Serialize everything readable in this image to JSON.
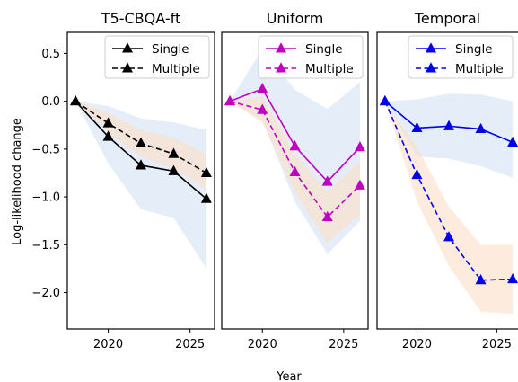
{
  "figure": {
    "xlabel": "Year",
    "ylabel": "Log-likelihood change"
  },
  "chart_data": [
    {
      "type": "line",
      "title": "T5-CBQA-ft",
      "color": "#000000",
      "band_colors": [
        "#cfe0f3",
        "#fbe0c6"
      ],
      "x": [
        2018,
        2020,
        2022,
        2024,
        2026
      ],
      "series": [
        {
          "name": "Single",
          "style": "solid",
          "values": [
            0.0,
            -0.37,
            -0.67,
            -0.73,
            -1.02
          ],
          "band_lower": [
            0.0,
            -0.65,
            -1.13,
            -1.22,
            -1.75
          ],
          "band_upper": [
            0.0,
            -0.05,
            -0.18,
            -0.22,
            -0.3
          ]
        },
        {
          "name": "Multiple",
          "style": "dashed",
          "values": [
            0.0,
            -0.23,
            -0.44,
            -0.55,
            -0.75
          ],
          "band_lower": [
            0.0,
            -0.33,
            -0.58,
            -0.7,
            -0.92
          ],
          "band_upper": [
            0.0,
            -0.12,
            -0.3,
            -0.38,
            -0.55
          ]
        }
      ],
      "xticks": [
        2020,
        2025
      ],
      "yticks": [
        0.5,
        0.0,
        -0.5,
        -1.0,
        -1.5,
        -2.0
      ],
      "ytick_labels": [
        "0.5",
        "0.0",
        "−0.5",
        "−1.0",
        "−1.5",
        "−2.0"
      ],
      "xlim": [
        2017.5,
        2026.5
      ],
      "ylim": [
        -2.38,
        0.72
      ],
      "legend": "top-right"
    },
    {
      "type": "line",
      "title": "Uniform",
      "color": "#c000c0",
      "band_colors": [
        "#cfe0f3",
        "#fbe0c6"
      ],
      "x": [
        2018,
        2020,
        2022,
        2024,
        2026
      ],
      "series": [
        {
          "name": "Single",
          "style": "solid",
          "values": [
            0.0,
            0.13,
            -0.47,
            -0.84,
            -0.48
          ],
          "band_lower": [
            0.0,
            -0.2,
            -1.05,
            -1.6,
            -1.25
          ],
          "band_upper": [
            0.0,
            0.55,
            0.12,
            -0.08,
            0.2
          ]
        },
        {
          "name": "Multiple",
          "style": "dashed",
          "values": [
            0.0,
            -0.09,
            -0.74,
            -1.21,
            -0.88
          ],
          "band_lower": [
            0.0,
            -0.22,
            -0.95,
            -1.48,
            -1.18
          ],
          "band_upper": [
            0.0,
            0.05,
            -0.55,
            -0.95,
            -0.62
          ]
        }
      ],
      "xticks": [
        2020,
        2025
      ],
      "xlim": [
        2017.5,
        2026.5
      ],
      "ylim": [
        -2.38,
        0.72
      ],
      "legend": "top-right"
    },
    {
      "type": "line",
      "title": "Temporal",
      "color": "#0000ee",
      "band_colors": [
        "#cfe0f3",
        "#fbe0c6"
      ],
      "x": [
        2018,
        2020,
        2022,
        2024,
        2026
      ],
      "series": [
        {
          "name": "Single",
          "style": "solid",
          "values": [
            0.0,
            -0.28,
            -0.26,
            -0.29,
            -0.43
          ],
          "band_lower": [
            0.0,
            -0.58,
            -0.6,
            -0.68,
            -0.8
          ],
          "band_upper": [
            0.0,
            0.02,
            0.08,
            0.07,
            0.0
          ]
        },
        {
          "name": "Multiple",
          "style": "dashed",
          "values": [
            0.0,
            -0.77,
            -1.42,
            -1.87,
            -1.86
          ],
          "band_lower": [
            0.0,
            -1.05,
            -1.72,
            -2.2,
            -2.22
          ],
          "band_upper": [
            0.0,
            -0.48,
            -1.1,
            -1.5,
            -1.5
          ]
        }
      ],
      "xticks": [
        2020,
        2025
      ],
      "xlim": [
        2017.5,
        2026.5
      ],
      "ylim": [
        -2.38,
        0.72
      ],
      "legend": "top-right"
    }
  ]
}
